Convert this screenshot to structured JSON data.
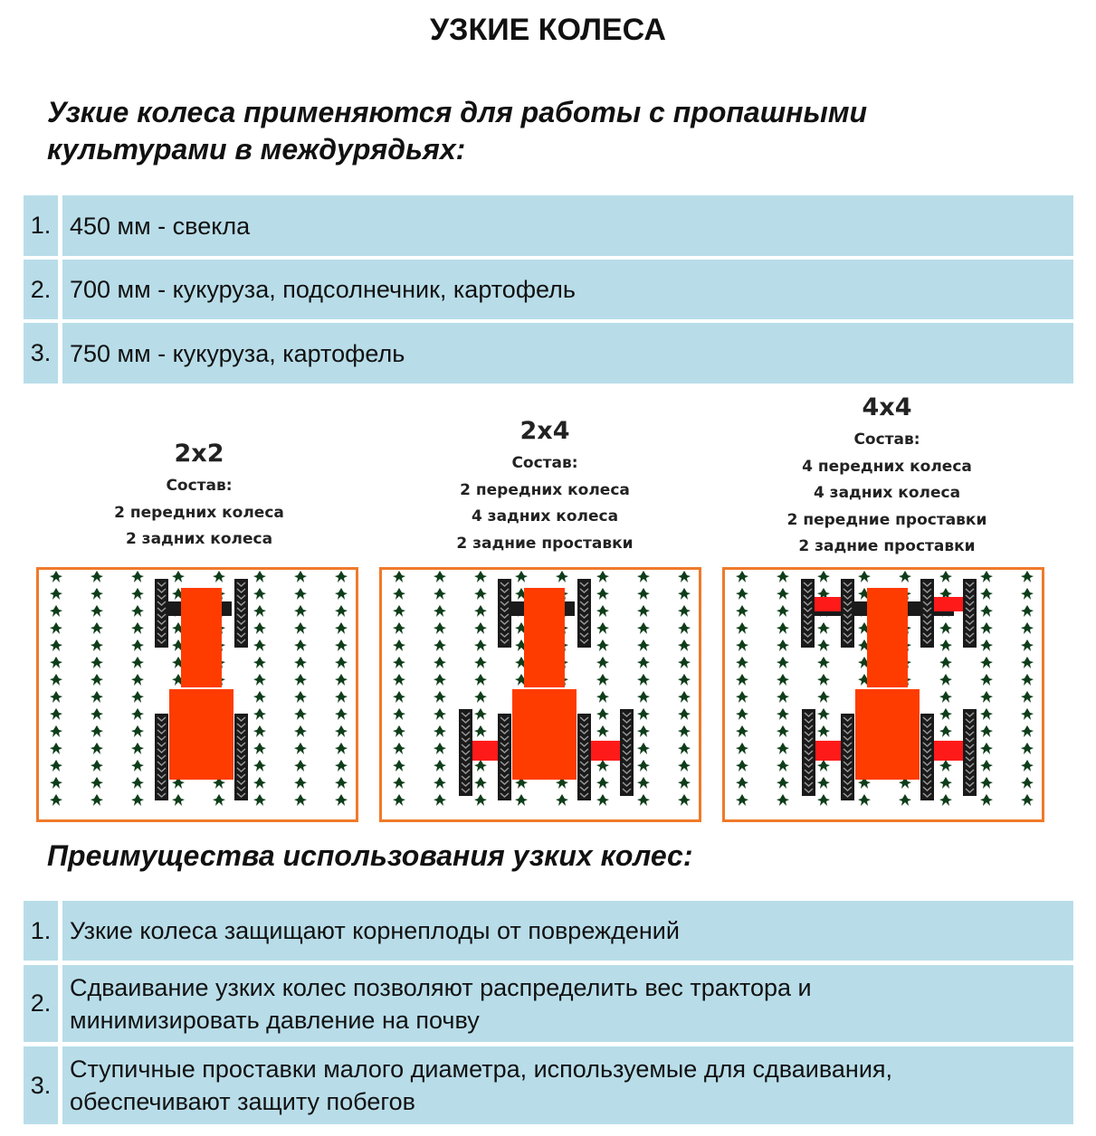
{
  "title": "УЗКИЕ КОЛЕСА",
  "intro": "Узкие колеса применяются для работы с пропашными культурами в междурядьях:",
  "spacings": [
    {
      "num": "1.",
      "text": "450 мм - свекла"
    },
    {
      "num": "2.",
      "text": "700 мм - кукуруза, подсолнечник, картофель"
    },
    {
      "num": "3.",
      "text": "750 мм - кукуруза, картофель"
    }
  ],
  "configs": [
    {
      "name": "2x2",
      "label": "Состав:",
      "items": [
        "2 передних колеса",
        "2 задних колеса"
      ],
      "front_dual": false,
      "rear_dual": false
    },
    {
      "name": "2x4",
      "label": "Состав:",
      "items": [
        "2 передних колеса",
        "4 задних колеса",
        "2 задние проставки"
      ],
      "front_dual": false,
      "rear_dual": true
    },
    {
      "name": "4x4",
      "label": "Состав:",
      "items": [
        "4 передних колеса",
        "4 задних колеса",
        "2 передние проставки",
        "2 задние проставки"
      ],
      "front_dual": true,
      "rear_dual": true
    }
  ],
  "advantages_title": "Преимущества использования узких колес:",
  "advantages": [
    {
      "num": "1.",
      "text": "Узкие колеса защищают корнеплоды от повреждений"
    },
    {
      "num": "2.",
      "text": "Сдваивание узких колес позволяют распределить вес трактора и минимизировать давление на почву"
    },
    {
      "num": "3.",
      "text": "Ступичные проставки малого диаметра, используемые для сдваивания, обеспечивают защиту побегов"
    }
  ],
  "colors": {
    "row_bg": "#b8dde9",
    "tractor": "#ff3c00",
    "frame": "#ef7a2a",
    "plant": "#0f3d1a",
    "wheel": "#1a1a1a",
    "spacer": "#ff1a1a"
  }
}
